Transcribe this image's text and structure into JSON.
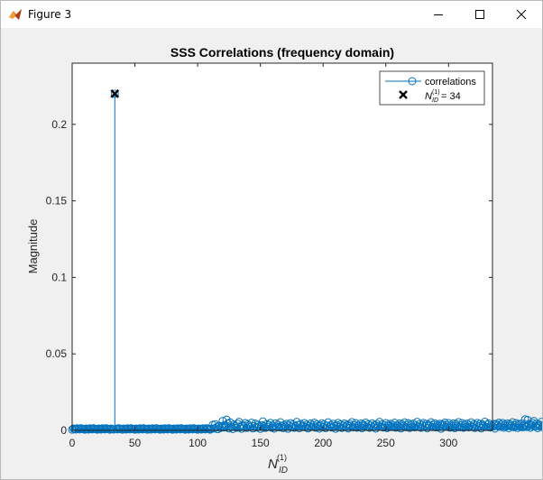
{
  "window": {
    "title": "Figure 3",
    "icon": "matlab-icon"
  },
  "controls": {
    "minimize": "minimize-icon",
    "maximize": "maximize-icon",
    "close": "close-icon"
  },
  "chart_data": {
    "type": "stem",
    "title": "SSS Correlations (frequency domain)",
    "xlabel": "N_ID^(1)",
    "ylabel": "Magnitude",
    "xlim": [
      0,
      335
    ],
    "ylim": [
      0,
      0.24
    ],
    "xticks": [
      0,
      50,
      100,
      150,
      200,
      250,
      300
    ],
    "yticks": [
      0,
      0.05,
      0.1,
      0.15,
      0.2
    ],
    "ytick_labels": [
      "0",
      "0.05",
      "0.1",
      "0.15",
      "0.2"
    ],
    "legend_position": "top-right",
    "colors": {
      "stem": "#0072bd",
      "marker_peak": "#000000",
      "axes": "#262626"
    },
    "series": [
      {
        "name": "correlations",
        "style": "stem-circle",
        "baseline": 0.0005,
        "peak_index": 34,
        "peak_value": 0.22,
        "low_range_max": 0.0015,
        "noise_start_index": 112,
        "noise_values": [
          0.0036,
          0.0012,
          0.004,
          0.0021,
          0.0008,
          0.003,
          0.0015,
          0.0027,
          0.0061,
          0.0019,
          0.0032,
          0.007,
          0.0045,
          0.0013,
          0.0052,
          0.0024,
          0.0009,
          0.0038,
          0.0029,
          0.0017,
          0.0043,
          0.0055,
          0.0021,
          0.0011,
          0.0034,
          0.0026,
          0.0048,
          0.0016,
          0.0039,
          0.0031,
          0.0022,
          0.005,
          0.0013,
          0.0028,
          0.0044,
          0.0019,
          0.0037,
          0.0025,
          0.001,
          0.0033,
          0.0058,
          0.0027,
          0.0016,
          0.0041,
          0.0023,
          0.0035,
          0.0049,
          0.0018,
          0.003,
          0.0012,
          0.0046,
          0.0024,
          0.0038,
          0.002,
          0.0053,
          0.0029,
          0.0015,
          0.0036,
          0.0026,
          0.0043,
          0.0011,
          0.0032,
          0.0047,
          0.0022,
          0.0039,
          0.0017,
          0.0028,
          0.0055,
          0.0034,
          0.0014,
          0.0042,
          0.0025,
          0.0031,
          0.0048,
          0.002,
          0.0037,
          0.0013,
          0.0029,
          0.0045,
          0.0023,
          0.0035,
          0.005,
          0.0018,
          0.004,
          0.0027,
          0.0012,
          0.0033,
          0.0046,
          0.0021,
          0.0038,
          0.0015,
          0.003,
          0.0052,
          0.0024,
          0.0036,
          0.0019,
          0.0043,
          0.0028,
          0.0011,
          0.0034,
          0.0049,
          0.0022,
          0.0039,
          0.0016,
          0.0031,
          0.0045,
          0.0025,
          0.0037,
          0.0013,
          0.0041,
          0.0029,
          0.0054,
          0.002,
          0.0033,
          0.0047,
          0.0018,
          0.0035,
          0.0026,
          0.0044,
          0.0014,
          0.0038,
          0.003,
          0.0051,
          0.0023,
          0.004,
          0.0017,
          0.0032,
          0.0046,
          0.0021,
          0.0036,
          0.0012,
          0.0042,
          0.0028,
          0.0055,
          0.0024,
          0.0039,
          0.0019,
          0.0033,
          0.0048,
          0.0015,
          0.0037,
          0.0027,
          0.0043,
          0.0022,
          0.0031,
          0.005,
          0.0018,
          0.0035,
          0.0026,
          0.0045,
          0.0013,
          0.004,
          0.0029,
          0.0052,
          0.0021,
          0.0034,
          0.0047,
          0.0016,
          0.0038,
          0.0025,
          0.0044,
          0.002,
          0.0032,
          0.0055,
          0.0023,
          0.0041,
          0.0017,
          0.0036,
          0.0049,
          0.0028,
          0.0042,
          0.0014,
          0.0039,
          0.003,
          0.0053,
          0.0022,
          0.0035,
          0.0046,
          0.0019,
          0.0037,
          0.0026,
          0.0043,
          0.0011,
          0.004,
          0.0031,
          0.0051,
          0.0024,
          0.0034,
          0.0048,
          0.0018,
          0.0036,
          0.0027,
          0.0045,
          0.0015,
          0.0041,
          0.0029,
          0.0054,
          0.0021,
          0.0033,
          0.0047,
          0.0017,
          0.0038,
          0.0025,
          0.0044,
          0.002,
          0.0032,
          0.0052,
          0.0023,
          0.004,
          0.0016,
          0.0035,
          0.0049,
          0.0028,
          0.0043,
          0.0013,
          0.0039,
          0.003,
          0.0056,
          0.0022,
          0.0037,
          0.0046,
          0.0019,
          0.0034,
          0.0026,
          0.0042,
          0.0012,
          0.0041,
          0.0031,
          0.005,
          0.0024,
          0.0036,
          0.0048,
          0.0018,
          0.0038,
          0.0027,
          0.0045,
          0.0014,
          0.004,
          0.0029,
          0.0053,
          0.0021,
          0.0033,
          0.0047,
          0.0016,
          0.0039,
          0.0025,
          0.0044,
          0.002,
          0.0031,
          0.0072,
          0.0023,
          0.0068,
          0.0042,
          0.0017,
          0.0037,
          0.0049,
          0.0061,
          0.0028,
          0.0043,
          0.0015,
          0.0039,
          0.003,
          0.0055,
          0.0022,
          0.0036,
          0.0046,
          0.0019,
          0.0034,
          0.0026,
          0.0062,
          0.0066,
          0.0011,
          0.004,
          0.0031,
          0.0051,
          0.0024,
          0.0035,
          0.0048,
          0.0018,
          0.0038
        ]
      },
      {
        "name": "N_ID^(1) = 34",
        "style": "x-marker",
        "x": 34,
        "y": 0.22
      }
    ],
    "legend": [
      {
        "label": "correlations"
      },
      {
        "label_main": "N",
        "label_sub": "ID",
        "label_sup": "(1)",
        "label_tail": " = 34"
      }
    ]
  }
}
